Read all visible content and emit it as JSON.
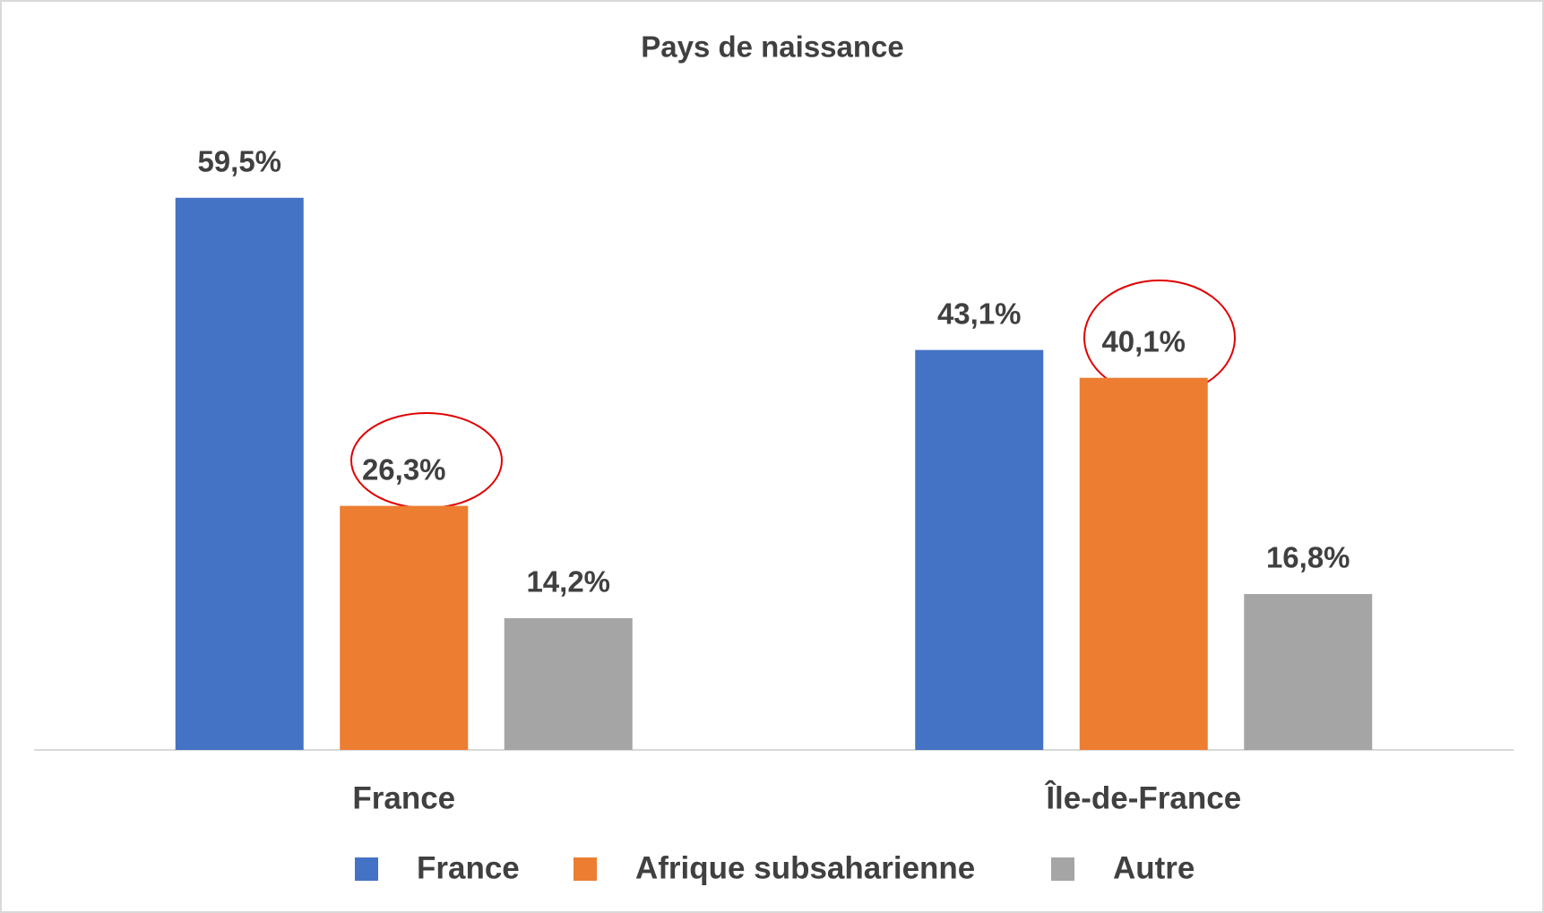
{
  "chart_data": {
    "type": "bar",
    "title": "Pays de naissance",
    "categories": [
      "France",
      "Île-de-France"
    ],
    "series": [
      {
        "name": "France",
        "color": "#4472c4",
        "values": [
          59.5,
          43.1
        ],
        "value_labels": [
          "59,5%",
          "43,1%"
        ]
      },
      {
        "name": "Afrique subsaharienne",
        "color": "#ed7d31",
        "values": [
          26.3,
          40.1
        ],
        "value_labels": [
          "26,3%",
          "40,1%"
        ]
      },
      {
        "name": "Autre",
        "color": "#a5a5a5",
        "values": [
          14.2,
          16.8
        ],
        "value_labels": [
          "14,2%",
          "16,8%"
        ]
      }
    ],
    "ylim": [
      0,
      70
    ],
    "grid": false
  }
}
